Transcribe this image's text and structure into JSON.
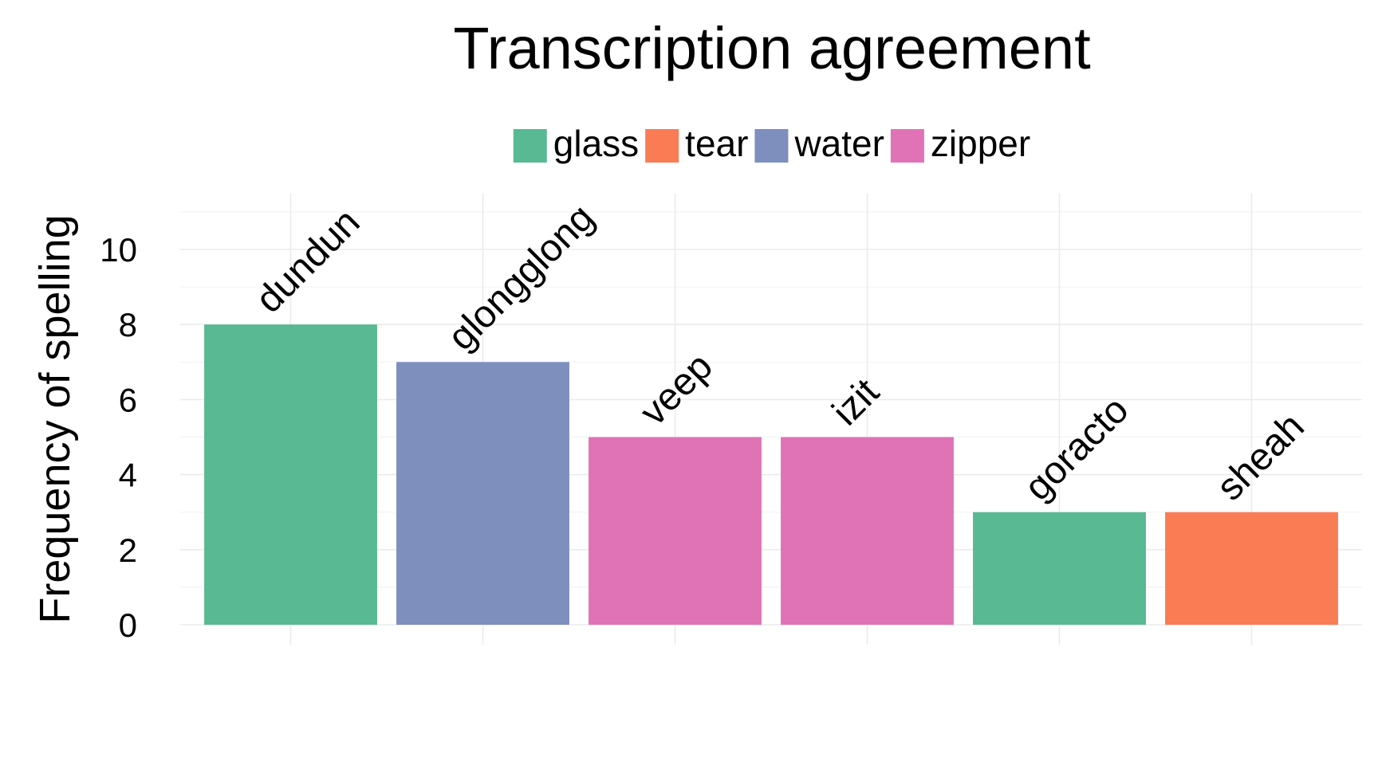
{
  "chart_data": {
    "type": "bar",
    "title": "Transcription agreement",
    "xlabel": "",
    "ylabel": "Frequency of spelling",
    "ylim": [
      0,
      11.5
    ],
    "yticks": [
      0,
      2,
      4,
      6,
      8,
      10
    ],
    "grid": true,
    "legend_position": "top",
    "legend": [
      {
        "name": "glass",
        "color": "#58b993"
      },
      {
        "name": "tear",
        "color": "#f97c55"
      },
      {
        "name": "water",
        "color": "#7e8fbe"
      },
      {
        "name": "zipper",
        "color": "#e073b5"
      }
    ],
    "categories": [
      "dundun",
      "glongglong",
      "veep",
      "izit",
      "goracto",
      "sheah"
    ],
    "values": [
      8,
      7,
      5,
      5,
      3,
      3
    ],
    "groups": [
      "glass",
      "water",
      "zipper",
      "zipper",
      "glass",
      "tear"
    ],
    "labels_visible": [
      "dundun",
      "glongglong",
      "veep",
      "izit",
      "goracto",
      "sheah"
    ]
  }
}
